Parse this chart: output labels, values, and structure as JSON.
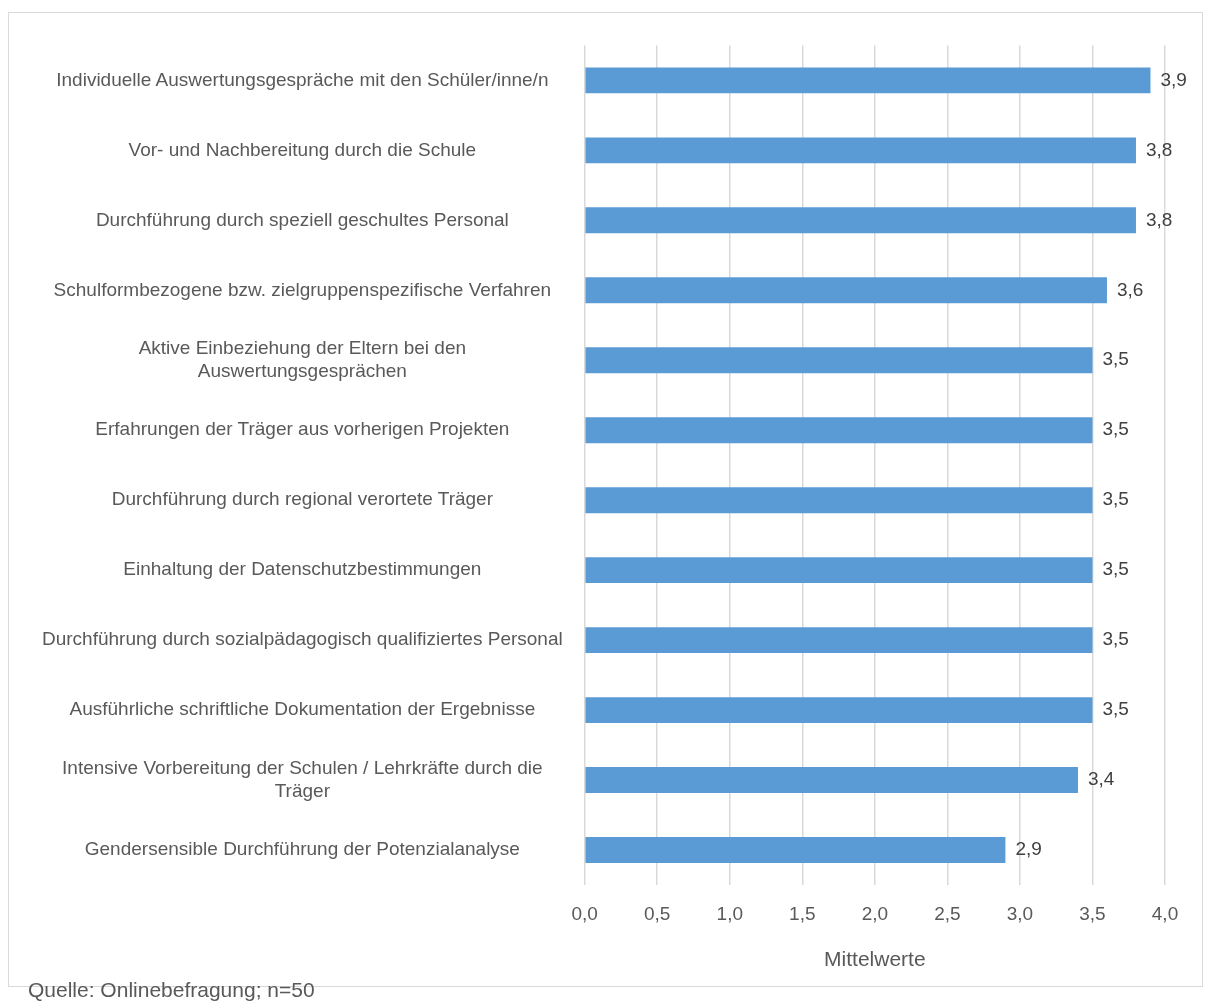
{
  "chart_data": {
    "type": "bar",
    "orientation": "horizontal",
    "categories": [
      "Individuelle Auswertungsgespräche mit den Schüler/inne/n",
      "Vor- und Nachbereitung durch die Schule",
      "Durchführung durch speziell geschultes Personal",
      "Schulformbezogene bzw. zielgruppenspezifische Verfahren",
      "Aktive Einbeziehung der Eltern bei den Auswertungsgesprächen",
      "Erfahrungen der Träger aus vorherigen Projekten",
      "Durchführung durch regional verortete Träger",
      "Einhaltung der Datenschutzbestimmungen",
      "Durchführung durch sozialpädagogisch qualifiziertes Personal",
      "Ausführliche schriftliche Dokumentation der Ergebnisse",
      "Intensive Vorbereitung der Schulen / Lehrkräfte durch die Träger",
      "Gendersensible Durchführung der Potenzialanalyse"
    ],
    "values": [
      3.9,
      3.8,
      3.8,
      3.6,
      3.5,
      3.5,
      3.5,
      3.5,
      3.5,
      3.5,
      3.4,
      2.9
    ],
    "value_labels": [
      "3,9",
      "3,8",
      "3,8",
      "3,6",
      "3,5",
      "3,5",
      "3,5",
      "3,5",
      "3,5",
      "3,5",
      "3,4",
      "2,9"
    ],
    "color": "#5b9bd5",
    "xlim": [
      0,
      4
    ],
    "xticks": [
      {
        "value": 0,
        "label": "0,0"
      },
      {
        "value": 0.5,
        "label": "0,5"
      },
      {
        "value": 1,
        "label": "1,0"
      },
      {
        "value": 1.5,
        "label": "1,5"
      },
      {
        "value": 2,
        "label": "2,0"
      },
      {
        "value": 2.5,
        "label": "2,5"
      },
      {
        "value": 3,
        "label": "3,0"
      },
      {
        "value": 3.5,
        "label": "3,5"
      },
      {
        "value": 4,
        "label": "4,0"
      }
    ],
    "xlabel": "Mittelwerte",
    "grid": "x",
    "legend": false,
    "annotations": [
      "Quelle: Onlinebefragung; n=50"
    ]
  }
}
